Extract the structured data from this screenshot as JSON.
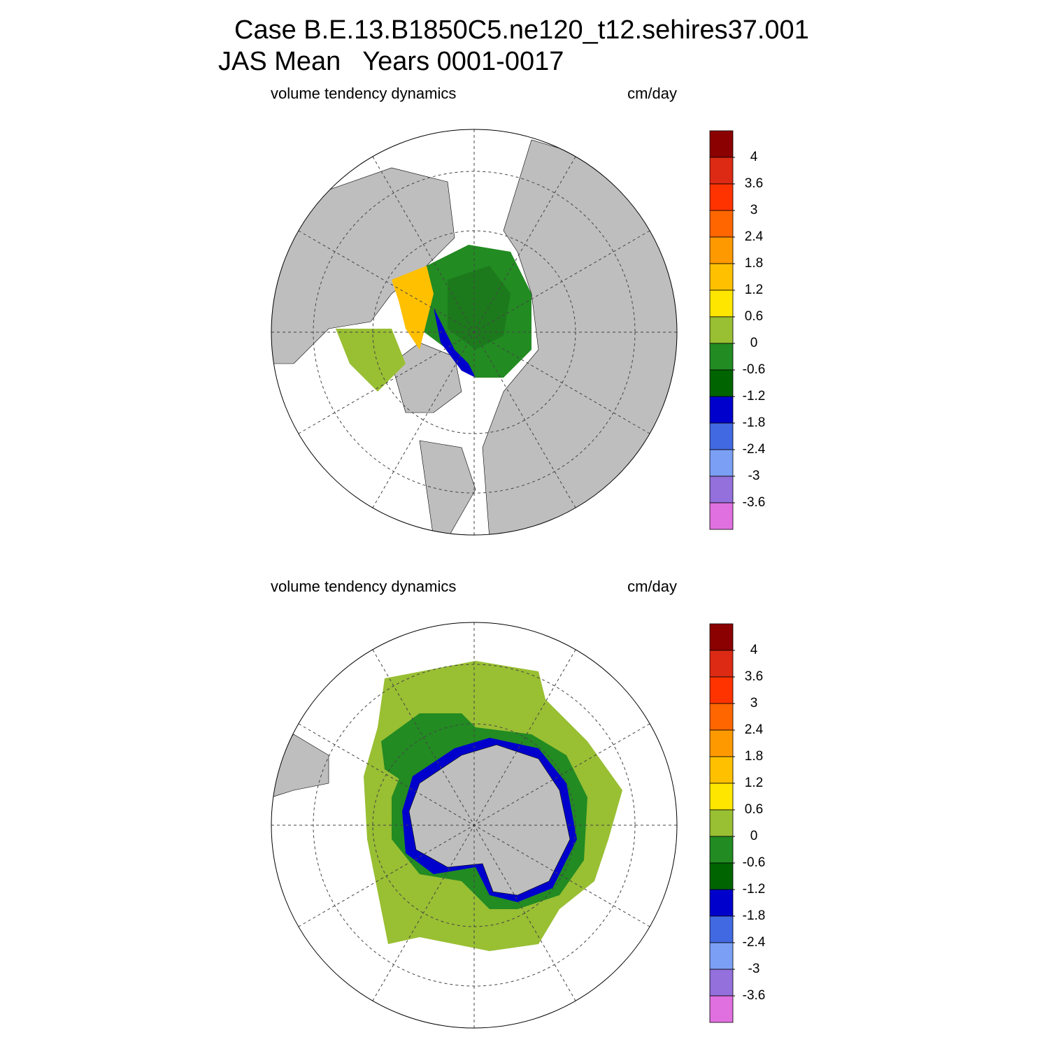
{
  "title": [
    "Case B.E.13.B1850C5.ne120_t12.sehires37.001",
    "JAS Mean   Years 0001-0017"
  ],
  "panels": [
    {
      "left_label": "volume tendency dynamics",
      "right_label": "cm/day",
      "colorbar": {
        "levels": [
          4,
          3.6,
          3,
          2.4,
          1.8,
          1.2,
          0.6,
          0,
          -0.6,
          -1.2,
          -1.8,
          -2.4,
          -3,
          -3.6
        ],
        "colors": [
          "#8b0000",
          "#dc2a14",
          "#ff3300",
          "#ff6600",
          "#ff9900",
          "#ffc000",
          "#ffe600",
          "#99bf33",
          "#228b22",
          "#006400",
          "#0000cd",
          "#4169e1",
          "#7b9ff5",
          "#9370db",
          "#e070e0"
        ]
      }
    },
    {
      "left_label": "volume tendency dynamics",
      "right_label": "cm/day",
      "colorbar": {
        "levels": [
          4,
          3.6,
          3,
          2.4,
          1.8,
          1.2,
          0.6,
          0,
          -0.6,
          -1.2,
          -1.8,
          -2.4,
          -3,
          -3.6
        ],
        "colors": [
          "#8b0000",
          "#dc2a14",
          "#ff3300",
          "#ff6600",
          "#ff9900",
          "#ffc000",
          "#ffe600",
          "#99bf33",
          "#228b22",
          "#006400",
          "#0000cd",
          "#4169e1",
          "#7b9ff5",
          "#9370db",
          "#e070e0"
        ]
      }
    }
  ]
}
